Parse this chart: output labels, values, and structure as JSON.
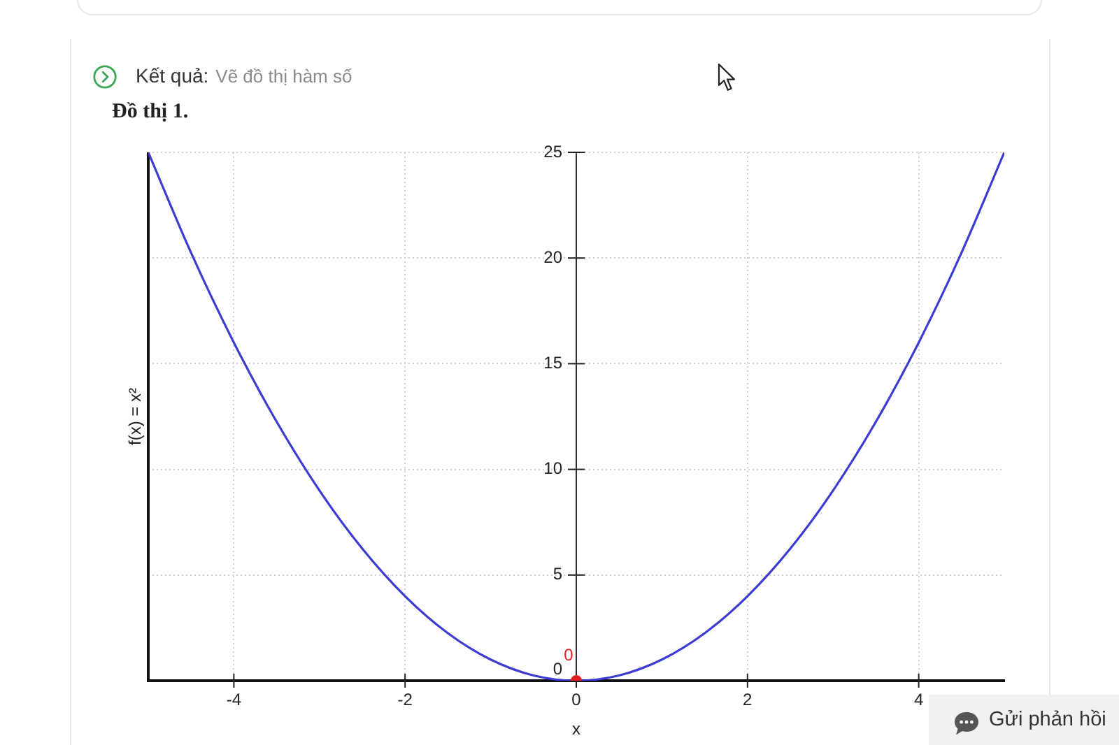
{
  "chart_data": {
    "type": "line",
    "title": "Đồ thị 1.",
    "xlabel": "x",
    "ylabel": "f(x) = x²",
    "annotations": [
      "Kết quả:",
      "Vẽ đồ thị hàm số",
      "Gửi phản hồi"
    ],
    "x": [
      -5,
      -4.5,
      -4,
      -3.5,
      -3,
      -2.5,
      -2,
      -1.5,
      -1,
      -0.5,
      0,
      0.5,
      1,
      1.5,
      2,
      2.5,
      3,
      3.5,
      4,
      4.5,
      5
    ],
    "series": [
      {
        "type": "line",
        "color": "#3c3cd2",
        "marker": "none",
        "values": [
          25,
          20.25,
          16,
          12.25,
          9,
          6.25,
          4,
          2.25,
          1,
          0.25,
          0,
          0.25,
          1,
          2.25,
          4,
          6.25,
          9,
          12.25,
          16,
          20.25,
          25
        ]
      },
      {
        "type": "scatter",
        "color": "#e02020",
        "marker": "circle",
        "x": [
          0
        ],
        "values": [
          0
        ],
        "value_labels": [
          "0"
        ]
      }
    ],
    "xlim": [
      -5,
      5
    ],
    "xticks": [
      -4,
      -2,
      0,
      2,
      4
    ],
    "ylim": [
      0,
      25
    ],
    "yticks": [
      0,
      5,
      10,
      15,
      20,
      25
    ],
    "grid": true,
    "legend": false,
    "line_style": "solid"
  }
}
